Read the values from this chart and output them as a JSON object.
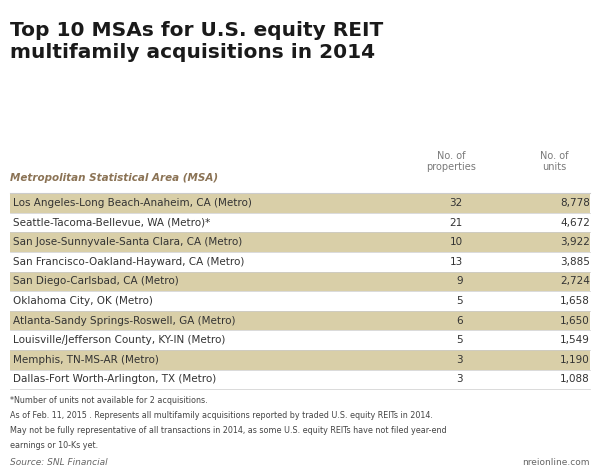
{
  "title": "Top 10 MSAs for U.S. equity REIT\nmultifamily acquisitions in 2014",
  "col_header_msa": "Metropolitan Statistical Area (MSA)",
  "col_header_props": "No. of\nproperties",
  "col_header_units": "No. of\nunits",
  "rows": [
    {
      "msa": "Los Angeles-Long Beach-Anaheim, CA (Metro)",
      "props": "32",
      "units": "8,778",
      "shaded": true
    },
    {
      "msa": "Seattle-Tacoma-Bellevue, WA (Metro)*",
      "props": "21",
      "units": "4,672",
      "shaded": false
    },
    {
      "msa": "San Jose-Sunnyvale-Santa Clara, CA (Metro)",
      "props": "10",
      "units": "3,922",
      "shaded": true
    },
    {
      "msa": "San Francisco-Oakland-Hayward, CA (Metro)",
      "props": "13",
      "units": "3,885",
      "shaded": false
    },
    {
      "msa": "San Diego-Carlsbad, CA (Metro)",
      "props": "9",
      "units": "2,724",
      "shaded": true
    },
    {
      "msa": "Oklahoma City, OK (Metro)",
      "props": "5",
      "units": "1,658",
      "shaded": false
    },
    {
      "msa": "Atlanta-Sandy Springs-Roswell, GA (Metro)",
      "props": "6",
      "units": "1,650",
      "shaded": true
    },
    {
      "msa": "Louisville/Jefferson County, KY-IN (Metro)",
      "props": "5",
      "units": "1,549",
      "shaded": false
    },
    {
      "msa": "Memphis, TN-MS-AR (Metro)",
      "props": "3",
      "units": "1,190",
      "shaded": true
    },
    {
      "msa": "Dallas-Fort Worth-Arlington, TX (Metro)",
      "props": "3",
      "units": "1,088",
      "shaded": false
    }
  ],
  "footnotes": [
    "*Number of units not available for 2 acquisitions.",
    "As of Feb. 11, 2015 . Represents all multifamily acquisitions reported by traded U.S. equity REITs in 2014.",
    "May not be fully representative of all transactions in 2014, as some U.S. equity REITs have not filed year-end",
    "earnings or 10-Ks yet."
  ],
  "source_left": "Source: SNL Financial",
  "source_right": "nreionline.com",
  "shaded_color": "#d9cfa8",
  "white_color": "#ffffff",
  "background_color": "#ffffff",
  "title_color": "#1a1a1a",
  "header_color": "#7a7a7a",
  "msa_header_color": "#8b7355",
  "data_color": "#333333",
  "footnote_color": "#444444",
  "source_color": "#666666",
  "border_color": "#cccccc"
}
